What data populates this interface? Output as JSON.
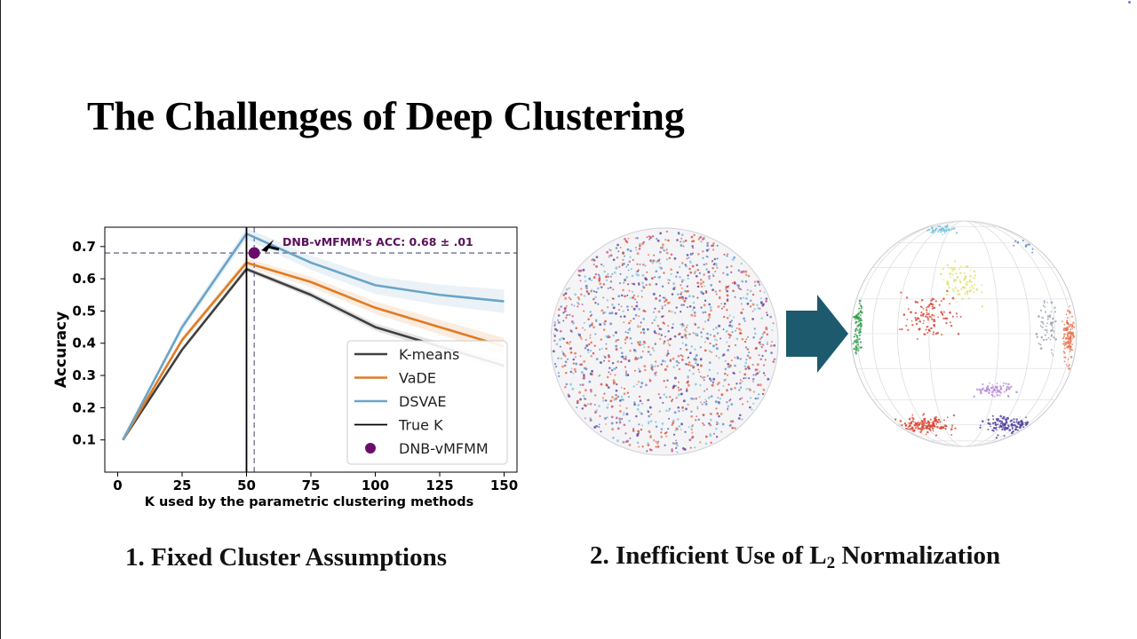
{
  "slide": {
    "title": "The Challenges of Deep Clustering",
    "caption_left": "1. Fixed Cluster Assumptions",
    "caption_right_prefix": "2. Inefficient Use of L",
    "caption_right_sub": "2",
    "caption_right_suffix": " Normalization"
  },
  "chart_data": {
    "type": "line",
    "title": "",
    "xlabel": "K used by the parametric clustering methods",
    "ylabel": "Accuracy",
    "xlim": [
      -5,
      155
    ],
    "ylim": [
      0.0,
      0.76
    ],
    "xticks": [
      0,
      25,
      50,
      75,
      100,
      125,
      150
    ],
    "yticks": [
      0.1,
      0.2,
      0.3,
      0.4,
      0.5,
      0.6,
      0.7
    ],
    "grid": false,
    "legend_position": "lower-right",
    "series": [
      {
        "name": "K-means",
        "color": "#404040",
        "x": [
          2,
          25,
          50,
          75,
          100,
          125,
          150
        ],
        "y": [
          0.1,
          0.38,
          0.63,
          0.55,
          0.45,
          0.39,
          0.33
        ]
      },
      {
        "name": "VaDE",
        "color": "#e07b24",
        "x": [
          2,
          25,
          50,
          75,
          100,
          125,
          150
        ],
        "y": [
          0.1,
          0.41,
          0.65,
          0.59,
          0.51,
          0.45,
          0.39
        ]
      },
      {
        "name": "DSVAE",
        "color": "#6aa4c8",
        "x": [
          2,
          25,
          50,
          75,
          100,
          125,
          150
        ],
        "y": [
          0.1,
          0.45,
          0.74,
          0.65,
          0.58,
          0.55,
          0.53
        ]
      }
    ],
    "true_k": {
      "name": "True K",
      "x": 50,
      "color": "#000000"
    },
    "dnb_point": {
      "name": "DNB-vMFMM",
      "x": 53,
      "y": 0.68,
      "color": "#6a0d6a"
    },
    "annotation": "DNB-vMFMM's ACC: 0.68 ± .01"
  },
  "figure_colors": {
    "arrow": "#1d5a6e",
    "cluster_palette": [
      "#d9412e",
      "#e8734d",
      "#5a86c8",
      "#7ac4d9",
      "#4e3b9c",
      "#c44e8c",
      "#e0e070",
      "#2e9a4a",
      "#b58ad6",
      "#9aa0b0"
    ]
  }
}
